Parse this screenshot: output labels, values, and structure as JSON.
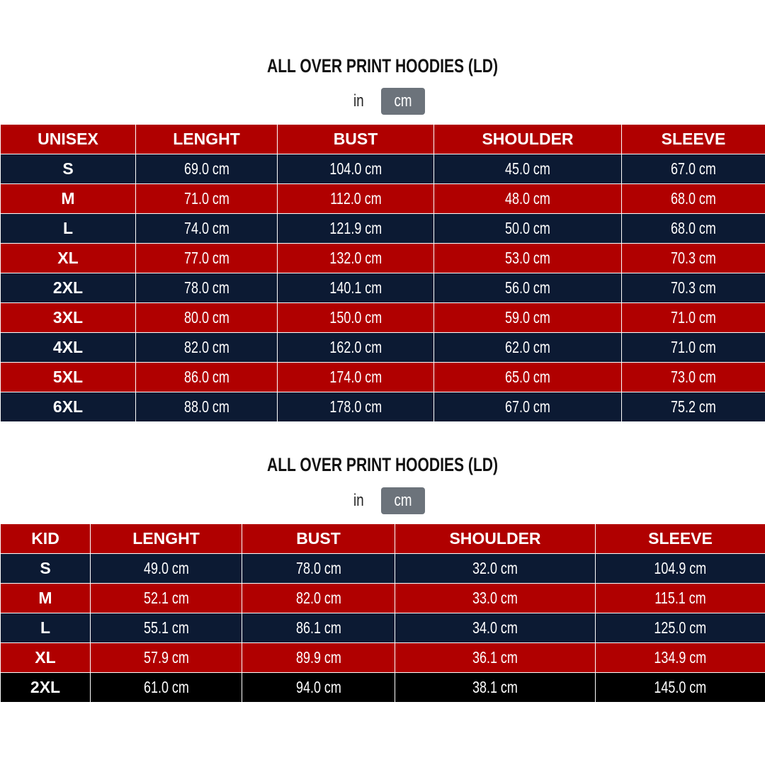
{
  "colors": {
    "header": "#b00000",
    "row_alt": "#0c1a33",
    "last_row_kid": "#000000",
    "unit_active": "#6c737b"
  },
  "unisex": {
    "title": "ALL OVER PRINT HOODIES (LD)",
    "unit_in": "in",
    "unit_cm": "cm",
    "active_unit": "cm",
    "headers": [
      "UNISEX",
      "LENGHT",
      "BUST",
      "SHOULDER",
      "SLEEVE"
    ],
    "rows": [
      [
        "S",
        "69.0 cm",
        "104.0 cm",
        "45.0 cm",
        "67.0 cm"
      ],
      [
        "M",
        "71.0 cm",
        "112.0 cm",
        "48.0 cm",
        "68.0 cm"
      ],
      [
        "L",
        "74.0 cm",
        "121.9 cm",
        "50.0 cm",
        "68.0 cm"
      ],
      [
        "XL",
        "77.0 cm",
        "132.0 cm",
        "53.0 cm",
        "70.3 cm"
      ],
      [
        "2XL",
        "78.0 cm",
        "140.1 cm",
        "56.0 cm",
        "70.3 cm"
      ],
      [
        "3XL",
        "80.0 cm",
        "150.0 cm",
        "59.0 cm",
        "71.0 cm"
      ],
      [
        "4XL",
        "82.0 cm",
        "162.0 cm",
        "62.0 cm",
        "71.0 cm"
      ],
      [
        "5XL",
        "86.0 cm",
        "174.0 cm",
        "65.0 cm",
        "73.0 cm"
      ],
      [
        "6XL",
        "88.0 cm",
        "178.0 cm",
        "67.0 cm",
        "75.2 cm"
      ]
    ]
  },
  "kid": {
    "title": "ALL OVER PRINT HOODIES (LD)",
    "unit_in": "in",
    "unit_cm": "cm",
    "active_unit": "cm",
    "headers": [
      "KID",
      "LENGHT",
      "BUST",
      "SHOULDER",
      "SLEEVE"
    ],
    "rows": [
      [
        "S",
        "49.0 cm",
        "78.0 cm",
        "32.0 cm",
        "104.9 cm"
      ],
      [
        "M",
        "52.1 cm",
        "82.0 cm",
        "33.0 cm",
        "115.1 cm"
      ],
      [
        "L",
        "55.1 cm",
        "86.1 cm",
        "34.0 cm",
        "125.0 cm"
      ],
      [
        "XL",
        "57.9 cm",
        "89.9 cm",
        "36.1 cm",
        "134.9 cm"
      ],
      [
        "2XL",
        "61.0 cm",
        "94.0 cm",
        "38.1 cm",
        "145.0 cm"
      ]
    ]
  }
}
